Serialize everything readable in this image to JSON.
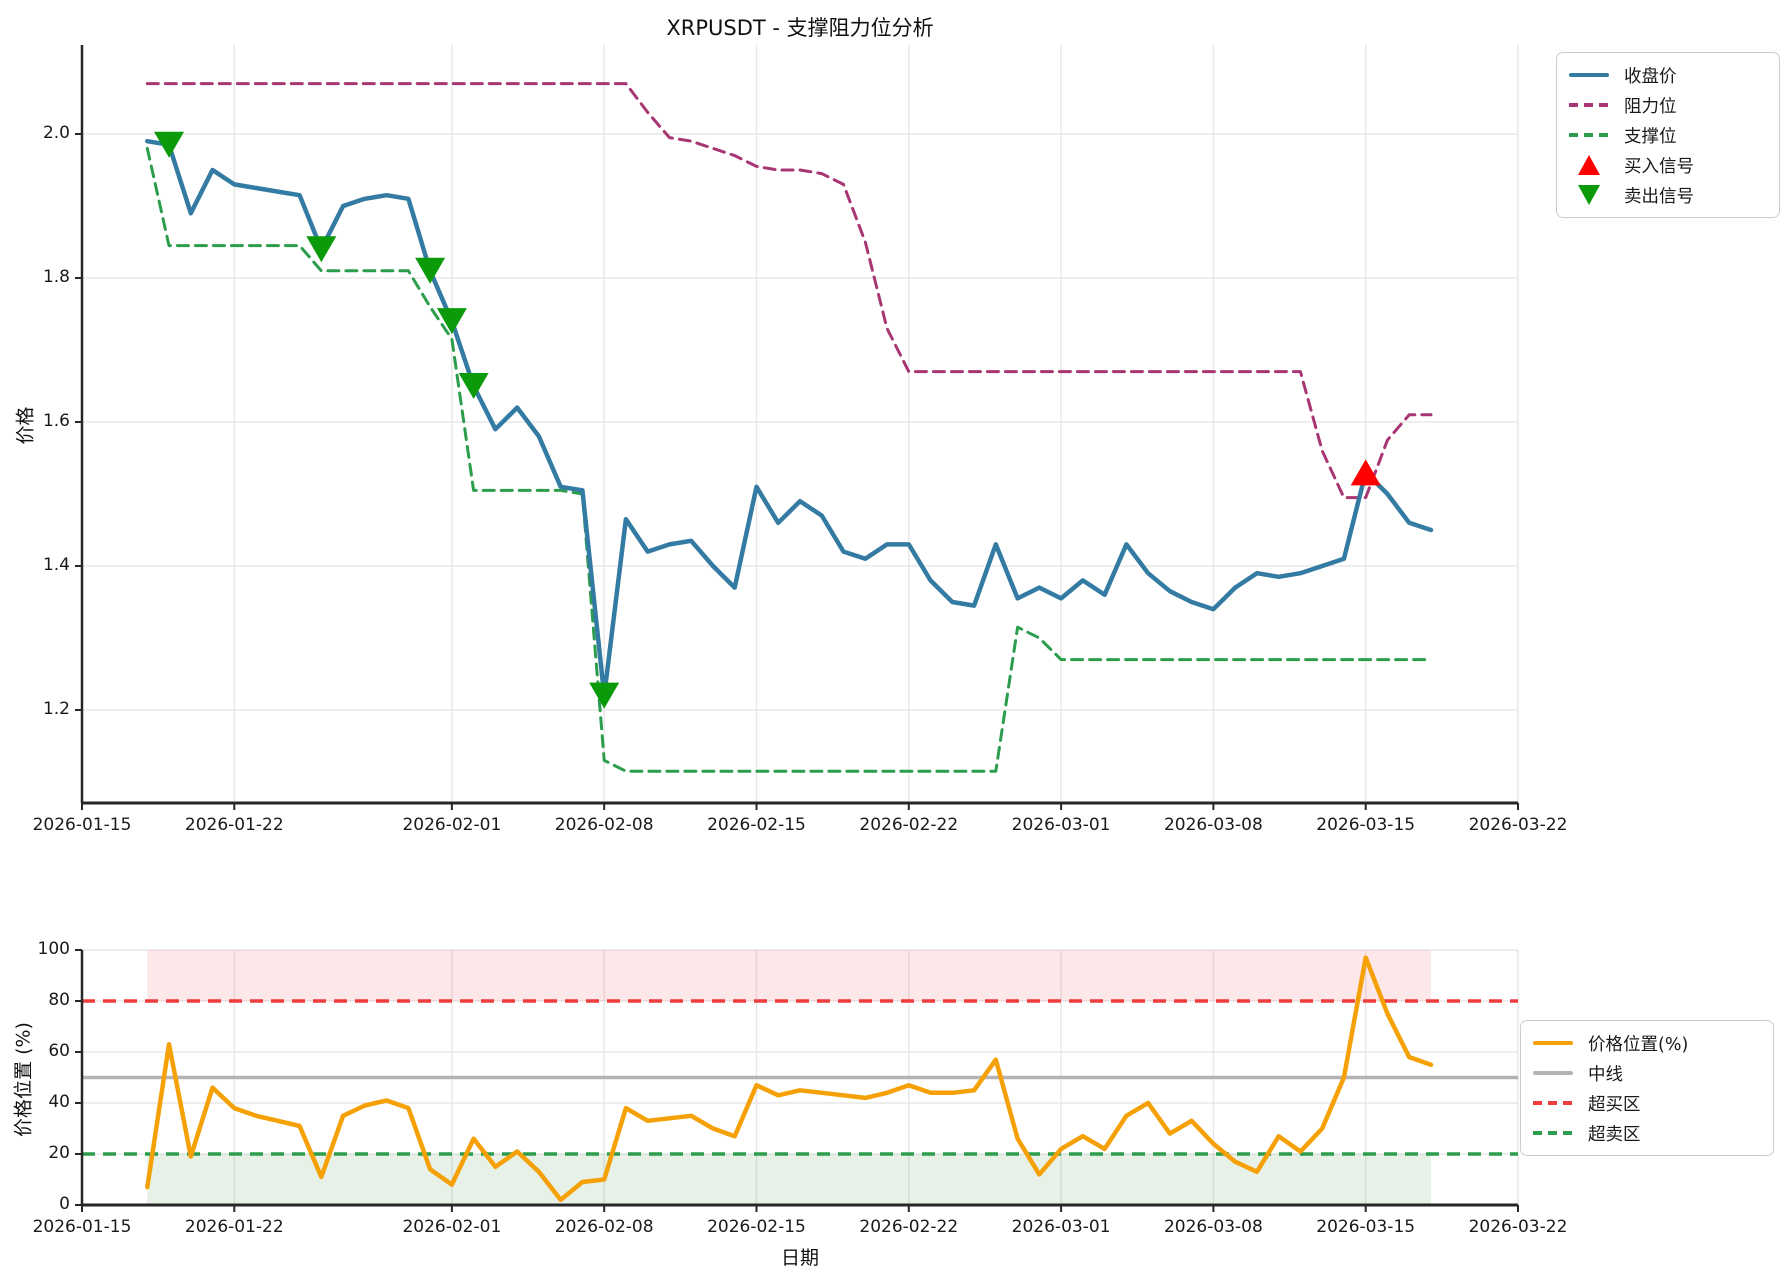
{
  "title": "XRPUSDT - 支撑阻力位分析",
  "colors": {
    "close": "#337ba2",
    "resistance": "#a83672",
    "support": "#2c9d4c",
    "buy_marker": "#fe0000",
    "sell_marker": "#0a9a0a",
    "position": "#f5a005",
    "midline": "#b3b3b3",
    "overbought": "#f03c3c",
    "oversold": "#2c9d4c",
    "band_red": "rgba(240,70,80,0.13)",
    "band_green": "rgba(80,150,70,0.13)",
    "grid": "#e7e7e7",
    "spine": "#262626",
    "text": "#1a1a1a"
  },
  "chart_data": [
    {
      "type": "line",
      "panel": "price",
      "ylabel": "价格",
      "ylim": [
        1.07,
        2.12
      ],
      "yticks": [
        "1.2",
        "1.4",
        "1.6",
        "1.8",
        "2.0"
      ],
      "xticks": [
        "2026-01-15",
        "2026-01-22",
        "2026-02-01",
        "2026-02-08",
        "2026-02-15",
        "2026-02-22",
        "2026-03-01",
        "2026-03-08",
        "2026-03-15",
        "2026-03-22"
      ],
      "x_dates": [
        "2026-01-18",
        "2026-01-19",
        "2026-01-20",
        "2026-01-21",
        "2026-01-22",
        "2026-01-23",
        "2026-01-24",
        "2026-01-25",
        "2026-01-26",
        "2026-01-27",
        "2026-01-28",
        "2026-01-29",
        "2026-01-30",
        "2026-01-31",
        "2026-02-01",
        "2026-02-02",
        "2026-02-03",
        "2026-02-04",
        "2026-02-05",
        "2026-02-06",
        "2026-02-07",
        "2026-02-08",
        "2026-02-09",
        "2026-02-10",
        "2026-02-11",
        "2026-02-12",
        "2026-02-13",
        "2026-02-14",
        "2026-02-15",
        "2026-02-16",
        "2026-02-17",
        "2026-02-18",
        "2026-02-19",
        "2026-02-20",
        "2026-02-21",
        "2026-02-22",
        "2026-02-23",
        "2026-02-24",
        "2026-02-25",
        "2026-02-26",
        "2026-02-27",
        "2026-02-28",
        "2026-03-01",
        "2026-03-02",
        "2026-03-03",
        "2026-03-04",
        "2026-03-05",
        "2026-03-06",
        "2026-03-07",
        "2026-03-08",
        "2026-03-09",
        "2026-03-10",
        "2026-03-11",
        "2026-03-12",
        "2026-03-13",
        "2026-03-14",
        "2026-03-15",
        "2026-03-16",
        "2026-03-17",
        "2026-03-18"
      ],
      "series": [
        {
          "name": "收盘价",
          "style": "solid",
          "color_key": "close",
          "values": [
            1.99,
            1.985,
            1.89,
            1.95,
            1.93,
            1.925,
            1.92,
            1.915,
            1.84,
            1.9,
            1.91,
            1.915,
            1.91,
            1.81,
            1.74,
            1.65,
            1.59,
            1.62,
            1.58,
            1.51,
            1.505,
            1.22,
            1.465,
            1.42,
            1.43,
            1.435,
            1.4,
            1.37,
            1.51,
            1.46,
            1.49,
            1.47,
            1.42,
            1.41,
            1.43,
            1.43,
            1.38,
            1.35,
            1.345,
            1.43,
            1.355,
            1.37,
            1.355,
            1.38,
            1.36,
            1.43,
            1.39,
            1.365,
            1.35,
            1.34,
            1.37,
            1.39,
            1.385,
            1.39,
            1.4,
            1.41,
            1.53,
            1.5,
            1.46,
            1.45
          ]
        },
        {
          "name": "阻力位",
          "style": "dashed",
          "color_key": "resistance",
          "values": [
            2.07,
            2.07,
            2.07,
            2.07,
            2.07,
            2.07,
            2.07,
            2.07,
            2.07,
            2.07,
            2.07,
            2.07,
            2.07,
            2.07,
            2.07,
            2.07,
            2.07,
            2.07,
            2.07,
            2.07,
            2.07,
            2.07,
            2.07,
            2.03,
            1.995,
            1.99,
            1.98,
            1.97,
            1.955,
            1.95,
            1.95,
            1.945,
            1.93,
            1.85,
            1.73,
            1.67,
            1.67,
            1.67,
            1.67,
            1.67,
            1.67,
            1.67,
            1.67,
            1.67,
            1.67,
            1.67,
            1.67,
            1.67,
            1.67,
            1.67,
            1.67,
            1.67,
            1.67,
            1.67,
            1.56,
            1.495,
            1.495,
            1.575,
            1.61,
            1.61
          ]
        },
        {
          "name": "支撑位",
          "style": "dashed",
          "color_key": "support",
          "values": [
            1.98,
            1.845,
            1.845,
            1.845,
            1.845,
            1.845,
            1.845,
            1.845,
            1.81,
            1.81,
            1.81,
            1.81,
            1.81,
            1.76,
            1.715,
            1.505,
            1.505,
            1.505,
            1.505,
            1.505,
            1.5,
            1.13,
            1.115,
            1.115,
            1.115,
            1.115,
            1.115,
            1.115,
            1.115,
            1.115,
            1.115,
            1.115,
            1.115,
            1.115,
            1.115,
            1.115,
            1.115,
            1.115,
            1.115,
            1.115,
            1.315,
            1.3,
            1.27,
            1.27,
            1.27,
            1.27,
            1.27,
            1.27,
            1.27,
            1.27,
            1.27,
            1.27,
            1.27,
            1.27,
            1.27,
            1.27,
            1.27,
            1.27,
            1.27,
            1.27
          ]
        }
      ],
      "signals": {
        "buy": [
          {
            "date": "2026-03-15",
            "price": 1.53
          }
        ],
        "sell": [
          {
            "date": "2026-01-19",
            "price": 1.985
          },
          {
            "date": "2026-01-26",
            "price": 1.84
          },
          {
            "date": "2026-01-31",
            "price": 1.81
          },
          {
            "date": "2026-02-01",
            "price": 1.74
          },
          {
            "date": "2026-02-02",
            "price": 1.65
          },
          {
            "date": "2026-02-08",
            "price": 1.22
          }
        ]
      },
      "legend": [
        {
          "label": "收盘价",
          "swatch": "line",
          "color_key": "close"
        },
        {
          "label": "阻力位",
          "swatch": "dash",
          "color_key": "resistance"
        },
        {
          "label": "支撑位",
          "swatch": "dash",
          "color_key": "support"
        },
        {
          "label": "买入信号",
          "swatch": "tri-up",
          "color_key": "buy_marker"
        },
        {
          "label": "卖出信号",
          "swatch": "tri-down",
          "color_key": "sell_marker"
        }
      ],
      "legend_position": "outside-upper-right",
      "grid": true
    },
    {
      "type": "line",
      "panel": "position-oscillator",
      "ylabel": "价格位置 (%)",
      "xlabel": "日期",
      "ylim": [
        0,
        100
      ],
      "yticks": [
        "0",
        "20",
        "40",
        "60",
        "80",
        "100"
      ],
      "xticks": [
        "2026-01-15",
        "2026-01-22",
        "2026-02-01",
        "2026-02-08",
        "2026-02-15",
        "2026-02-22",
        "2026-03-01",
        "2026-03-08",
        "2026-03-15",
        "2026-03-22"
      ],
      "x_dates": [
        "2026-01-18",
        "2026-01-19",
        "2026-01-20",
        "2026-01-21",
        "2026-01-22",
        "2026-01-23",
        "2026-01-24",
        "2026-01-25",
        "2026-01-26",
        "2026-01-27",
        "2026-01-28",
        "2026-01-29",
        "2026-01-30",
        "2026-01-31",
        "2026-02-01",
        "2026-02-02",
        "2026-02-03",
        "2026-02-04",
        "2026-02-05",
        "2026-02-06",
        "2026-02-07",
        "2026-02-08",
        "2026-02-09",
        "2026-02-10",
        "2026-02-11",
        "2026-02-12",
        "2026-02-13",
        "2026-02-14",
        "2026-02-15",
        "2026-02-16",
        "2026-02-17",
        "2026-02-18",
        "2026-02-19",
        "2026-02-20",
        "2026-02-21",
        "2026-02-22",
        "2026-02-23",
        "2026-02-24",
        "2026-02-25",
        "2026-02-26",
        "2026-02-27",
        "2026-02-28",
        "2026-03-01",
        "2026-03-02",
        "2026-03-03",
        "2026-03-04",
        "2026-03-05",
        "2026-03-06",
        "2026-03-07",
        "2026-03-08",
        "2026-03-09",
        "2026-03-10",
        "2026-03-11",
        "2026-03-12",
        "2026-03-13",
        "2026-03-14",
        "2026-03-15",
        "2026-03-16",
        "2026-03-17",
        "2026-03-18"
      ],
      "series": [
        {
          "name": "价格位置(%)",
          "style": "solid",
          "color_key": "position",
          "values": [
            7,
            63,
            19,
            46,
            38,
            35,
            33,
            31,
            11,
            35,
            39,
            41,
            38,
            14,
            8,
            26,
            15,
            21,
            13,
            2,
            9,
            10,
            38,
            33,
            34,
            35,
            30,
            27,
            47,
            43,
            45,
            44,
            43,
            42,
            44,
            47,
            44,
            44,
            45,
            57,
            26,
            12,
            22,
            27,
            22,
            35,
            40,
            28,
            33,
            24,
            17,
            13,
            27,
            21,
            30,
            50,
            97,
            75,
            58,
            55
          ]
        }
      ],
      "hlines": [
        {
          "label": "中线",
          "y": 50,
          "style": "solid",
          "color_key": "midline"
        },
        {
          "label": "超买区",
          "y": 80,
          "style": "dashed",
          "color_key": "overbought"
        },
        {
          "label": "超卖区",
          "y": 20,
          "style": "dashed",
          "color_key": "oversold"
        }
      ],
      "bands": [
        {
          "from": 80,
          "to": 100,
          "color_key": "band_red"
        },
        {
          "from": 0,
          "to": 20,
          "color_key": "band_green"
        }
      ],
      "legend": [
        {
          "label": "价格位置(%)",
          "swatch": "line",
          "color_key": "position"
        },
        {
          "label": "中线",
          "swatch": "line",
          "color_key": "midline"
        },
        {
          "label": "超买区",
          "swatch": "dash",
          "color_key": "overbought"
        },
        {
          "label": "超卖区",
          "swatch": "dash",
          "color_key": "oversold"
        }
      ],
      "legend_position": "outside-center-right",
      "grid": true
    }
  ]
}
